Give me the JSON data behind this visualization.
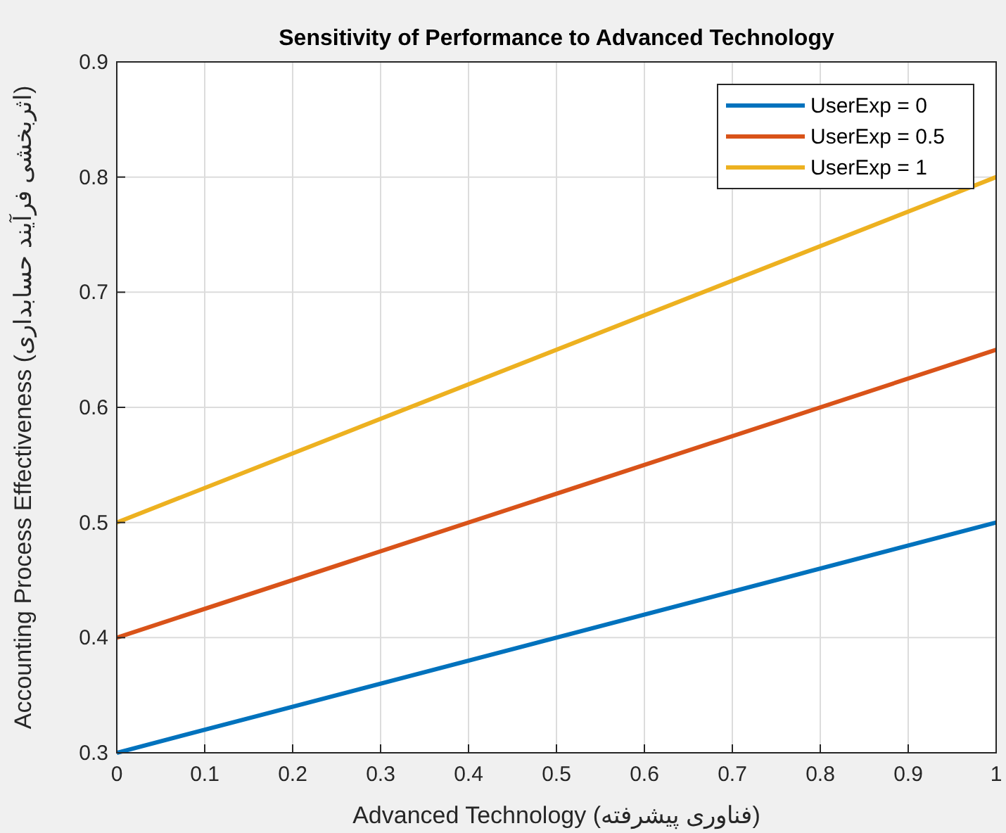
{
  "chart_data": {
    "type": "line",
    "title": "Sensitivity of Performance to Advanced Technology",
    "xlabel": "Advanced Technology (فناوری پیشرفته)",
    "ylabel": "Accounting Process Effectiveness (اثربخشی فرآیند حسابداری)",
    "x": [
      0,
      1
    ],
    "series": [
      {
        "name": "UserExp = 0",
        "color": "#0072bd",
        "values": [
          0.3,
          0.5
        ]
      },
      {
        "name": "UserExp = 0.5",
        "color": "#d95319",
        "values": [
          0.4,
          0.65
        ]
      },
      {
        "name": "UserExp = 1",
        "color": "#edb120",
        "values": [
          0.5,
          0.8
        ]
      }
    ],
    "xlim": [
      0,
      1
    ],
    "xticks": [
      0,
      0.1,
      0.2,
      0.3,
      0.4,
      0.5,
      0.6,
      0.7,
      0.8,
      0.9,
      1
    ],
    "ylim": [
      0.3,
      0.9
    ],
    "yticks": [
      0.3,
      0.4,
      0.5,
      0.6,
      0.7,
      0.8,
      0.9
    ],
    "grid": true,
    "legend": "top right",
    "line_style": "solid",
    "marker": "none"
  }
}
